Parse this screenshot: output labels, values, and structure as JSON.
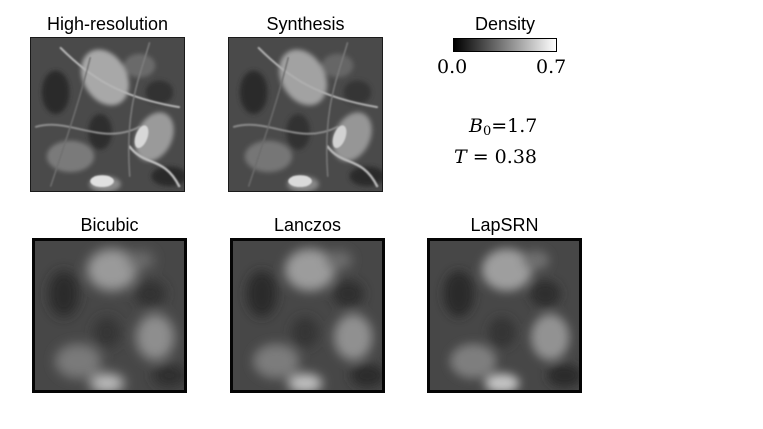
{
  "panels": {
    "high_res": {
      "title": "High-resolution"
    },
    "synthesis": {
      "title": "Synthesis"
    },
    "bicubic": {
      "title": "Bicubic"
    },
    "lanczos": {
      "title": "Lanczos"
    },
    "lapsrn": {
      "title": "LapSRN"
    }
  },
  "colorbar": {
    "title": "Density",
    "min_label": "0.0",
    "max_label": "0.7",
    "min": 0.0,
    "max": 0.7,
    "colormap": [
      "#000000",
      "#ffffff"
    ]
  },
  "params": {
    "b_symbol": "B",
    "b_subscript": "0",
    "b_value": "=1.7",
    "t_symbol": "T",
    "t_value": " = 0.38"
  }
}
